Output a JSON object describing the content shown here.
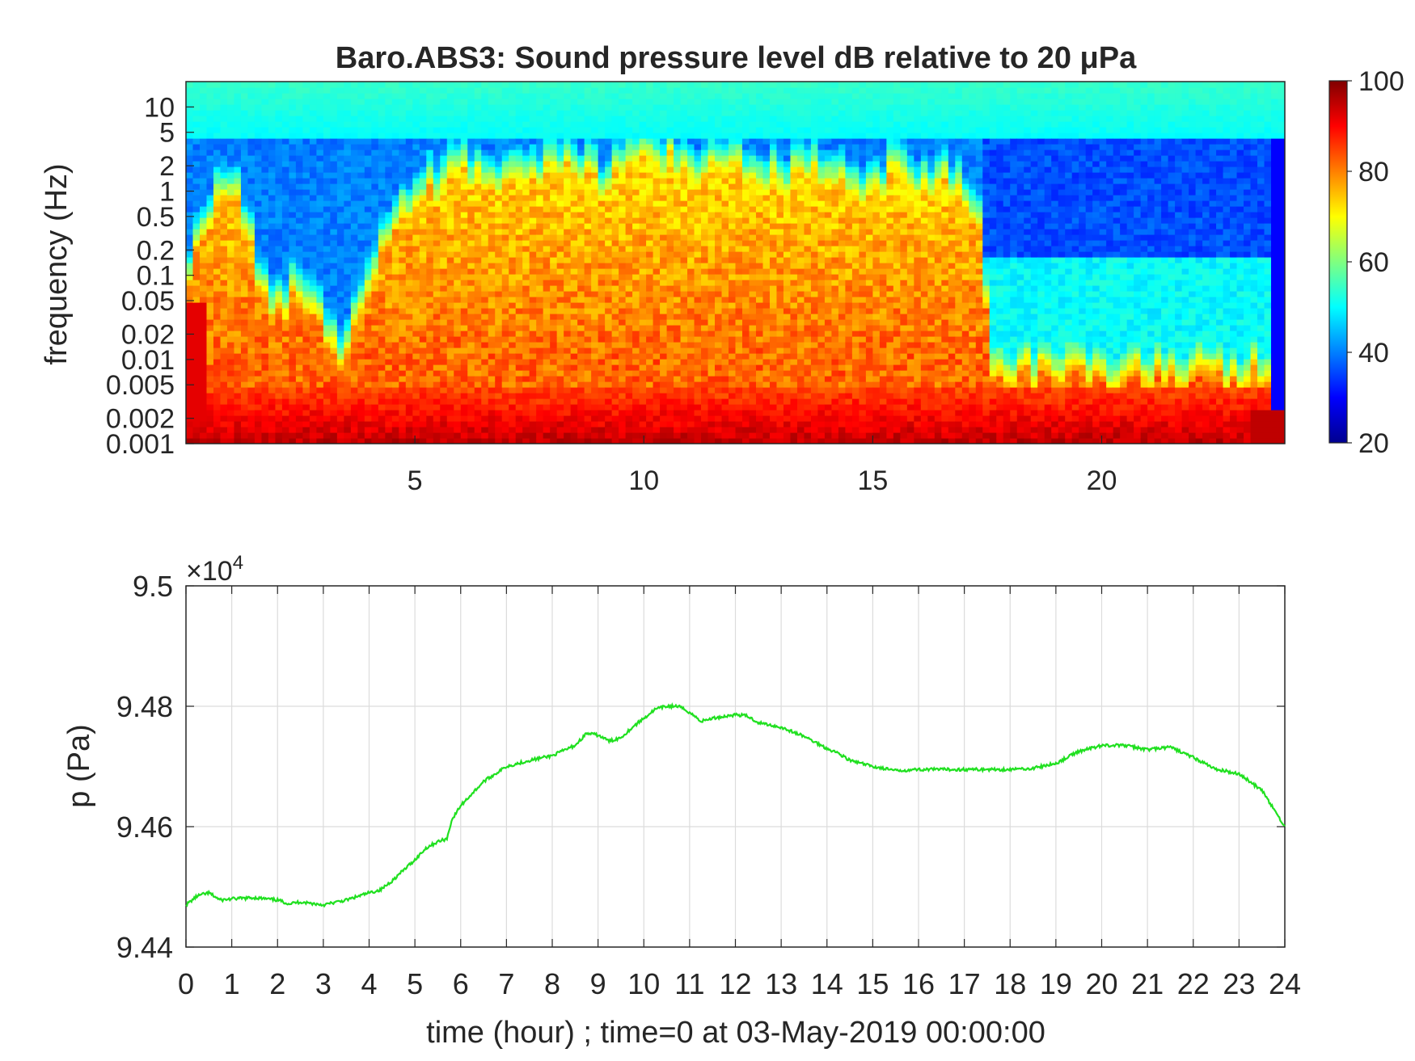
{
  "chart_data": [
    {
      "type": "heatmap",
      "title": "Baro.ABS3: Sound pressure level dB relative to 20 μPa",
      "ylabel": "frequency (Hz)",
      "xlabel": "",
      "y_scale": "log",
      "ylim": [
        0.001,
        20
      ],
      "xlim": [
        0,
        24
      ],
      "x_ticks": [
        5,
        10,
        15,
        20
      ],
      "y_ticks": [
        0.001,
        0.002,
        0.005,
        0.01,
        0.02,
        0.05,
        0.1,
        0.2,
        0.5,
        1,
        2,
        5,
        10
      ],
      "y_tick_labels": [
        "0.001",
        "0.002",
        "0.005",
        "0.01",
        "0.02",
        "0.05",
        "0.1",
        "0.2",
        "0.5",
        "1",
        "2",
        "5",
        "10"
      ],
      "colormap": "jet",
      "colorbar": {
        "range": [
          20,
          100
        ],
        "ticks": [
          20,
          40,
          60,
          80,
          100
        ],
        "labels": [
          "20",
          "40",
          "60",
          "80",
          "100"
        ]
      },
      "activity_envelope": {
        "x_hours": [
          0,
          0.5,
          1,
          1.5,
          2,
          2.5,
          3,
          3.5,
          4,
          4.5,
          5,
          5.5,
          6,
          6.5,
          7,
          7.5,
          8,
          8.5,
          9,
          9.5,
          10,
          10.5,
          11,
          11.5,
          12,
          12.5,
          13,
          13.5,
          14,
          14.5,
          15,
          15.5,
          16,
          16.5,
          17,
          17.5,
          18,
          18.5,
          19,
          19.5,
          20,
          20.5,
          21,
          21.5,
          22,
          22.5,
          23,
          23.5,
          24
        ],
        "upper_freq_hz_of_loud_band": [
          0.05,
          0.4,
          0.8,
          0.05,
          0.03,
          0.05,
          0.02,
          0.005,
          0.05,
          0.3,
          0.5,
          1,
          2,
          0.8,
          1.5,
          1,
          2,
          1.5,
          1,
          1.5,
          2,
          2,
          1.5,
          1.5,
          2,
          1.2,
          1,
          1.5,
          1,
          1,
          0.8,
          1.5,
          1,
          1,
          0.8,
          0.005,
          0.005,
          0.005,
          0.005,
          0.005,
          0.005,
          0.005,
          0.005,
          0.005,
          0.005,
          0.005,
          0.005,
          0.005,
          0.003
        ]
      }
    },
    {
      "type": "line",
      "ylabel": "p (Pa)",
      "xlabel": "time (hour) ; time=0 at 03-May-2019 00:00:00",
      "exponent_label": "×10",
      "exponent_power": "4",
      "xlim": [
        0,
        24
      ],
      "ylim": [
        94400,
        95000
      ],
      "x_ticks": [
        0,
        1,
        2,
        3,
        4,
        5,
        6,
        7,
        8,
        9,
        10,
        11,
        12,
        13,
        14,
        15,
        16,
        17,
        18,
        19,
        20,
        21,
        22,
        23,
        24
      ],
      "y_ticks": [
        94400,
        94600,
        94800,
        95000
      ],
      "y_tick_labels": [
        "9.44",
        "9.46",
        "9.48",
        "9.5"
      ],
      "grid": true,
      "line_color": "#20e020",
      "series": [
        {
          "x": [
            0,
            0.25,
            0.5,
            0.75,
            1,
            1.5,
            2,
            2.25,
            2.5,
            3,
            3.5,
            4,
            4.25,
            4.5,
            5,
            5.25,
            5.5,
            5.7,
            5.8,
            6,
            6.5,
            7,
            7.5,
            8,
            8.5,
            8.75,
            9,
            9.25,
            9.5,
            9.75,
            10,
            10.25,
            10.5,
            10.75,
            11,
            11.25,
            11.5,
            12,
            12.25,
            12.5,
            13,
            13.5,
            14,
            14.25,
            14.5,
            15,
            15.5,
            16,
            16.5,
            17,
            17.5,
            18,
            18.5,
            19,
            19.5,
            20,
            20.5,
            21,
            21.5,
            22,
            22.5,
            23,
            23.5,
            24
          ],
          "y": [
            94470,
            94485,
            94490,
            94478,
            94480,
            94482,
            94478,
            94472,
            94475,
            94470,
            94478,
            94490,
            94495,
            94510,
            94545,
            94565,
            94575,
            94580,
            94610,
            94635,
            94675,
            94700,
            94710,
            94718,
            94735,
            94755,
            94752,
            94742,
            94748,
            94765,
            94780,
            94795,
            94800,
            94800,
            94790,
            94775,
            94780,
            94786,
            94784,
            94773,
            94765,
            94750,
            94730,
            94722,
            94710,
            94700,
            94693,
            94695,
            94695,
            94695,
            94695,
            94695,
            94697,
            94705,
            94725,
            94735,
            94735,
            94728,
            94732,
            94715,
            94695,
            94688,
            94660,
            94600
          ]
        }
      ]
    }
  ]
}
